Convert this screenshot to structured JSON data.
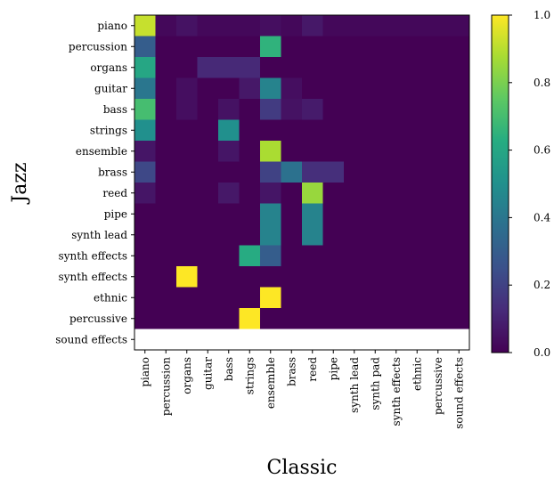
{
  "chart_data": {
    "type": "heatmap",
    "xlabel": "Classic",
    "ylabel": "Jazz",
    "x_categories": [
      "piano",
      "percussion",
      "organs",
      "guitar",
      "bass",
      "strings",
      "ensemble",
      "brass",
      "reed",
      "pipe",
      "synth lead",
      "synth pad",
      "synth effects",
      "ethnic",
      "percussive",
      "sound effects"
    ],
    "y_categories": [
      "piano",
      "percussion",
      "organs",
      "guitar",
      "bass",
      "strings",
      "ensemble",
      "brass",
      "reed",
      "pipe",
      "synth lead",
      "synth effects",
      "synth effects",
      "ethnic",
      "percussive",
      "sound effects"
    ],
    "values": [
      [
        0.92,
        0.02,
        0.05,
        0.02,
        0.02,
        0.02,
        0.04,
        0.02,
        0.07,
        0.02,
        0.02,
        0.02,
        0.02,
        0.02,
        0.02,
        0.02
      ],
      [
        0.3,
        0.0,
        0.0,
        0.0,
        0.0,
        0.0,
        0.65,
        0.0,
        0.0,
        0.0,
        0.0,
        0.0,
        0.0,
        0.0,
        0.0,
        0.0
      ],
      [
        0.6,
        0.0,
        0.0,
        0.12,
        0.12,
        0.12,
        0.0,
        0.0,
        0.0,
        0.0,
        0.0,
        0.0,
        0.0,
        0.0,
        0.0,
        0.0
      ],
      [
        0.4,
        0.0,
        0.04,
        0.0,
        0.0,
        0.07,
        0.45,
        0.04,
        0.0,
        0.0,
        0.0,
        0.0,
        0.0,
        0.0,
        0.0,
        0.0
      ],
      [
        0.7,
        0.0,
        0.04,
        0.0,
        0.05,
        0.0,
        0.18,
        0.05,
        0.08,
        0.0,
        0.0,
        0.0,
        0.0,
        0.0,
        0.0,
        0.0
      ],
      [
        0.5,
        0.0,
        0.0,
        0.0,
        0.5,
        0.0,
        0.0,
        0.0,
        0.0,
        0.0,
        0.0,
        0.0,
        0.0,
        0.0,
        0.0,
        0.0
      ],
      [
        0.06,
        0.0,
        0.0,
        0.0,
        0.06,
        0.0,
        0.88,
        0.0,
        0.0,
        0.0,
        0.0,
        0.0,
        0.0,
        0.0,
        0.0,
        0.0
      ],
      [
        0.22,
        0.0,
        0.0,
        0.0,
        0.0,
        0.0,
        0.2,
        0.38,
        0.14,
        0.14,
        0.0,
        0.0,
        0.0,
        0.0,
        0.0,
        0.0
      ],
      [
        0.06,
        0.0,
        0.0,
        0.0,
        0.07,
        0.0,
        0.06,
        0.0,
        0.85,
        0.0,
        0.0,
        0.0,
        0.0,
        0.0,
        0.0,
        0.0
      ],
      [
        0.0,
        0.0,
        0.0,
        0.0,
        0.0,
        0.0,
        0.45,
        0.0,
        0.45,
        0.0,
        0.0,
        0.0,
        0.0,
        0.0,
        0.0,
        0.0
      ],
      [
        0.0,
        0.0,
        0.0,
        0.0,
        0.0,
        0.0,
        0.45,
        0.0,
        0.45,
        0.0,
        0.0,
        0.0,
        0.0,
        0.0,
        0.0,
        0.0
      ],
      [
        0.0,
        0.0,
        0.0,
        0.0,
        0.0,
        0.62,
        0.3,
        0.0,
        0.0,
        0.0,
        0.0,
        0.0,
        0.0,
        0.0,
        0.0,
        0.0
      ],
      [
        0.0,
        0.0,
        1.0,
        0.0,
        0.0,
        0.0,
        0.0,
        0.0,
        0.0,
        0.0,
        0.0,
        0.0,
        0.0,
        0.0,
        0.0,
        0.0
      ],
      [
        0.0,
        0.0,
        0.0,
        0.0,
        0.0,
        0.0,
        1.0,
        0.0,
        0.0,
        0.0,
        0.0,
        0.0,
        0.0,
        0.0,
        0.0,
        0.0
      ],
      [
        0.0,
        0.0,
        0.0,
        0.0,
        0.0,
        1.0,
        0.0,
        0.0,
        0.0,
        0.0,
        0.0,
        0.0,
        0.0,
        0.0,
        0.0,
        0.0
      ],
      [
        null,
        null,
        null,
        null,
        null,
        null,
        null,
        null,
        null,
        null,
        null,
        null,
        null,
        null,
        null,
        null
      ]
    ],
    "colormap": "viridis",
    "colorbar": {
      "range": [
        0.0,
        1.0
      ],
      "ticks": [
        "0.0",
        "0.2",
        "0.4",
        "0.6",
        "0.8",
        "1.0"
      ]
    },
    "grid": false
  }
}
